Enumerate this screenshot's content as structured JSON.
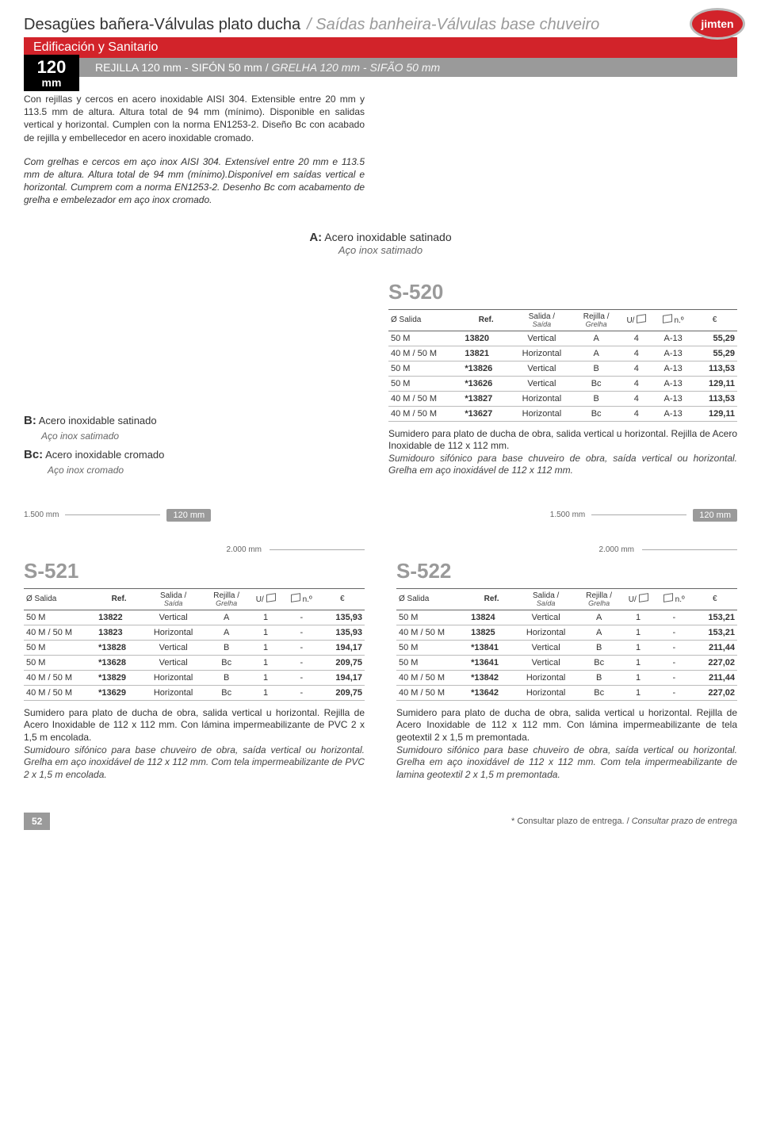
{
  "header": {
    "title_es": "Desagües bañera-Válvulas plato ducha",
    "title_pt": "/ Saídas banheira-Válvulas base chuveiro",
    "band_label": "Edificación y Sanitario",
    "size_value": "120",
    "size_unit": "mm",
    "band_text": "REJILLA 120 mm  - SIFÓN 50 mm /",
    "band_text_ital": "GRELHA 120 mm - SIFÃO 50 mm",
    "logo_text": "jimten"
  },
  "intro": {
    "es": "Con rejillas y cercos en acero inoxidable AISI 304. Extensible entre 20 mm y 113.5 mm de altura. Altura total de 94 mm (mínimo). Disponible en salidas vertical y horizontal. Cumplen con la norma EN1253-2. Diseño Bc con acabado de rejilla y embellecedor en acero inoxidable cromado.",
    "pt": "Com grelhas e cercos em aço inox AISI 304. Extensível entre 20 mm e 113.5 mm de altura. Altura total de 94 mm (mínimo).Disponível em saídas vertical e horizontal. Cumprem com a norma EN1253-2. Desenho Bc com acabamento de grelha e embelezador em aço inox cromado."
  },
  "variant_a": {
    "prefix": "A:",
    "label_es": "Acero inoxidable satinado",
    "label_pt": "Aço inox satimado"
  },
  "variant_b": {
    "b_prefix": "B:",
    "b_es": "Acero inoxidable satinado",
    "b_pt": "Aço inox satimado",
    "bc_prefix": "Bc:",
    "bc_es": "Acero inoxidable cromado",
    "bc_pt": "Aço inox cromado"
  },
  "headers": {
    "salida": "Ø Salida",
    "ref": "Ref.",
    "saida": "Salida /",
    "saida2": "Saída",
    "rejilla": "Rejilla /",
    "rejilla2": "Grelha",
    "u": "U/",
    "no": "n.º",
    "eur": "€"
  },
  "dims": {
    "d1": "1.500 mm",
    "d2": "120 mm",
    "d3": "2.000 mm"
  },
  "s520": {
    "code": "S-520",
    "rows": [
      {
        "s": "50 M",
        "r": "13820",
        "sa": "Vertical",
        "rj": "A",
        "u": "4",
        "n": "A-13",
        "p": "55,29"
      },
      {
        "s": "40 M / 50 M",
        "r": "13821",
        "sa": "Horizontal",
        "rj": "A",
        "u": "4",
        "n": "A-13",
        "p": "55,29"
      },
      {
        "s": "50 M",
        "r": "*13826",
        "sa": "Vertical",
        "rj": "B",
        "u": "4",
        "n": "A-13",
        "p": "113,53"
      },
      {
        "s": "50 M",
        "r": "*13626",
        "sa": "Vertical",
        "rj": "Bc",
        "u": "4",
        "n": "A-13",
        "p": "129,11"
      },
      {
        "s": "40 M / 50 M",
        "r": "*13827",
        "sa": "Horizontal",
        "rj": "B",
        "u": "4",
        "n": "A-13",
        "p": "113,53"
      },
      {
        "s": "40 M / 50 M",
        "r": "*13627",
        "sa": "Horizontal",
        "rj": "Bc",
        "u": "4",
        "n": "A-13",
        "p": "129,11"
      }
    ],
    "desc_es": "Sumidero para plato de ducha de obra, salida vertical u horizontal. Rejilla de Acero Inoxidable de 112 x 112 mm.",
    "desc_pt": "Sumidouro sifónico para base chuveiro de obra, saída vertical ou horizontal. Grelha em aço inoxidável de 112 x 112 mm."
  },
  "s521": {
    "code": "S-521",
    "rows": [
      {
        "s": "50 M",
        "r": "13822",
        "sa": "Vertical",
        "rj": "A",
        "u": "1",
        "n": "-",
        "p": "135,93"
      },
      {
        "s": "40 M / 50 M",
        "r": "13823",
        "sa": "Horizontal",
        "rj": "A",
        "u": "1",
        "n": "-",
        "p": "135,93"
      },
      {
        "s": "50 M",
        "r": "*13828",
        "sa": "Vertical",
        "rj": "B",
        "u": "1",
        "n": "-",
        "p": "194,17"
      },
      {
        "s": "50 M",
        "r": "*13628",
        "sa": "Vertical",
        "rj": "Bc",
        "u": "1",
        "n": "-",
        "p": "209,75"
      },
      {
        "s": "40 M / 50 M",
        "r": "*13829",
        "sa": "Horizontal",
        "rj": "B",
        "u": "1",
        "n": "-",
        "p": "194,17"
      },
      {
        "s": "40 M / 50 M",
        "r": "*13629",
        "sa": "Horizontal",
        "rj": "Bc",
        "u": "1",
        "n": "-",
        "p": "209,75"
      }
    ],
    "desc_es": "Sumidero para plato de ducha de obra, salida vertical u horizontal. Rejilla de Acero Inoxidable de 112 x 112 mm. Con lámina impermeabilizante de PVC 2 x 1,5 m encolada.",
    "desc_pt": "Sumidouro sifónico para base chuveiro de obra, saída vertical ou horizontal. Grelha em aço inoxidável de 112 x 112 mm. Com tela impermeabilizante de PVC 2 x 1,5 m encolada."
  },
  "s522": {
    "code": "S-522",
    "rows": [
      {
        "s": "50 M",
        "r": "13824",
        "sa": "Vertical",
        "rj": "A",
        "u": "1",
        "n": "-",
        "p": "153,21"
      },
      {
        "s": "40 M / 50 M",
        "r": "13825",
        "sa": "Horizontal",
        "rj": "A",
        "u": "1",
        "n": "-",
        "p": "153,21"
      },
      {
        "s": "50 M",
        "r": "*13841",
        "sa": "Vertical",
        "rj": "B",
        "u": "1",
        "n": "-",
        "p": "211,44"
      },
      {
        "s": "50 M",
        "r": "*13641",
        "sa": "Vertical",
        "rj": "Bc",
        "u": "1",
        "n": "-",
        "p": "227,02"
      },
      {
        "s": "40 M / 50 M",
        "r": "*13842",
        "sa": "Horizontal",
        "rj": "B",
        "u": "1",
        "n": "-",
        "p": "211,44"
      },
      {
        "s": "40 M / 50 M",
        "r": "*13642",
        "sa": "Horizontal",
        "rj": "Bc",
        "u": "1",
        "n": "-",
        "p": "227,02"
      }
    ],
    "desc_es": "Sumidero para plato de ducha de obra, salida vertical u horizontal. Rejilla de Acero Inoxidable de 112 x 112 mm. Con lámina impermeabilizante de tela geotextil 2 x 1,5 m premontada.",
    "desc_pt": "Sumidouro sifónico para base chuveiro de obra, saída vertical ou horizontal. Grelha em aço inoxidável de 112 x 112 mm. Com tela impermeabilizante de lamina geotextil 2 x 1,5 m premontada."
  },
  "footer": {
    "page": "52",
    "note_es": "* Consultar plazo de entrega. /",
    "note_pt": "Consultar prazo de entrega"
  }
}
